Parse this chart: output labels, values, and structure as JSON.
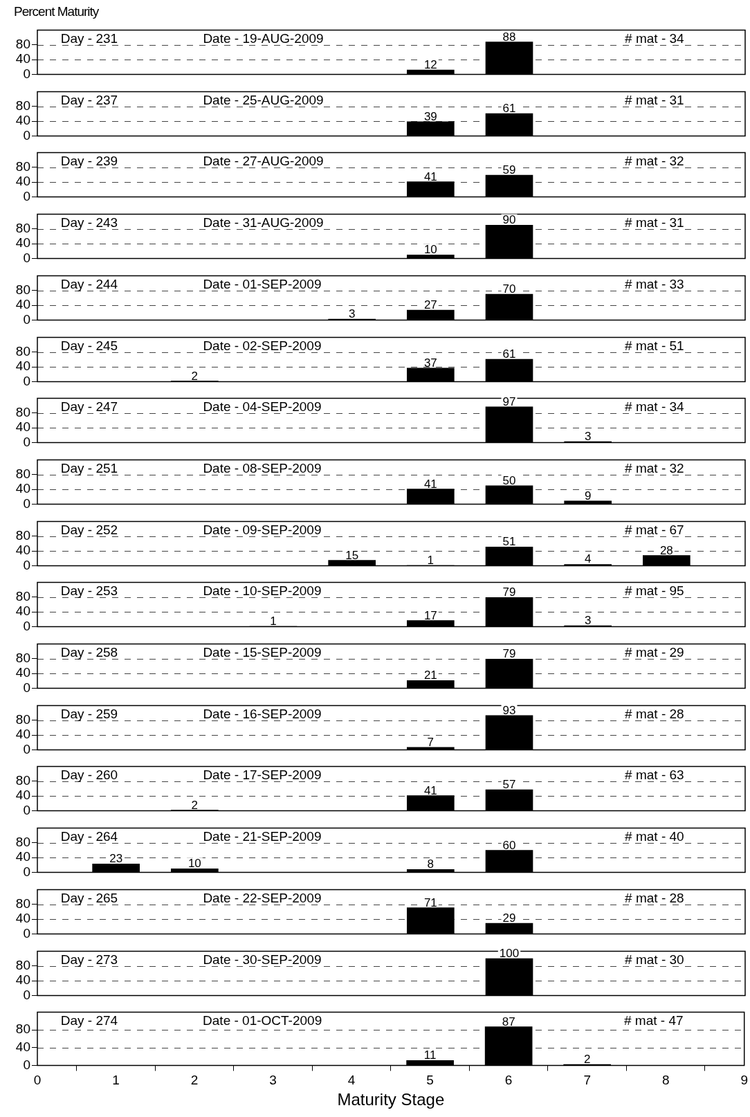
{
  "chart_data": [
    {
      "type": "bar",
      "ylabel": "Percent Maturity",
      "x": [
        5,
        6
      ],
      "values": [
        12,
        88
      ],
      "color": "#000000",
      "xlim": [
        0,
        9
      ],
      "xticks": [
        0,
        1,
        2,
        3,
        4,
        5,
        6,
        7,
        8,
        9
      ],
      "ylim": [
        0,
        120
      ],
      "yticks": [
        0,
        40,
        80
      ],
      "grid": "y",
      "tick_labels": "y",
      "data_labels": true,
      "annotations": [
        "Day - 231",
        "Date - 19-AUG-2009",
        "# mat - 34"
      ]
    },
    {
      "type": "bar",
      "x": [
        5,
        6
      ],
      "values": [
        39,
        61
      ],
      "color": "#000000",
      "xlim": [
        0,
        9
      ],
      "xticks": [
        0,
        1,
        2,
        3,
        4,
        5,
        6,
        7,
        8,
        9
      ],
      "ylim": [
        0,
        120
      ],
      "yticks": [
        0,
        40,
        80
      ],
      "grid": "y",
      "tick_labels": "y",
      "data_labels": true,
      "annotations": [
        "Day - 237",
        "Date - 25-AUG-2009",
        "# mat - 31"
      ]
    },
    {
      "type": "bar",
      "x": [
        5,
        6
      ],
      "values": [
        41,
        59
      ],
      "color": "#000000",
      "xlim": [
        0,
        9
      ],
      "xticks": [
        0,
        1,
        2,
        3,
        4,
        5,
        6,
        7,
        8,
        9
      ],
      "ylim": [
        0,
        120
      ],
      "yticks": [
        0,
        40,
        80
      ],
      "grid": "y",
      "tick_labels": "y",
      "data_labels": true,
      "annotations": [
        "Day - 239",
        "Date - 27-AUG-2009",
        "# mat - 32"
      ]
    },
    {
      "type": "bar",
      "x": [
        5,
        6
      ],
      "values": [
        10,
        90
      ],
      "color": "#000000",
      "xlim": [
        0,
        9
      ],
      "xticks": [
        0,
        1,
        2,
        3,
        4,
        5,
        6,
        7,
        8,
        9
      ],
      "ylim": [
        0,
        120
      ],
      "yticks": [
        0,
        40,
        80
      ],
      "grid": "y",
      "tick_labels": "y",
      "data_labels": true,
      "annotations": [
        "Day - 243",
        "Date - 31-AUG-2009",
        "# mat - 31"
      ]
    },
    {
      "type": "bar",
      "x": [
        4,
        5,
        6
      ],
      "values": [
        3,
        27,
        70
      ],
      "color": "#000000",
      "xlim": [
        0,
        9
      ],
      "xticks": [
        0,
        1,
        2,
        3,
        4,
        5,
        6,
        7,
        8,
        9
      ],
      "ylim": [
        0,
        120
      ],
      "yticks": [
        0,
        40,
        80
      ],
      "grid": "y",
      "tick_labels": "y",
      "data_labels": true,
      "annotations": [
        "Day - 244",
        "Date - 01-SEP-2009",
        "# mat - 33"
      ]
    },
    {
      "type": "bar",
      "x": [
        2,
        5,
        6
      ],
      "values": [
        2,
        37,
        61
      ],
      "color": "#000000",
      "xlim": [
        0,
        9
      ],
      "xticks": [
        0,
        1,
        2,
        3,
        4,
        5,
        6,
        7,
        8,
        9
      ],
      "ylim": [
        0,
        120
      ],
      "yticks": [
        0,
        40,
        80
      ],
      "grid": "y",
      "tick_labels": "y",
      "data_labels": true,
      "annotations": [
        "Day - 245",
        "Date - 02-SEP-2009",
        "# mat - 51"
      ]
    },
    {
      "type": "bar",
      "x": [
        6,
        7
      ],
      "values": [
        97,
        3
      ],
      "color": "#000000",
      "xlim": [
        0,
        9
      ],
      "xticks": [
        0,
        1,
        2,
        3,
        4,
        5,
        6,
        7,
        8,
        9
      ],
      "ylim": [
        0,
        120
      ],
      "yticks": [
        0,
        40,
        80
      ],
      "grid": "y",
      "tick_labels": "y",
      "data_labels": true,
      "annotations": [
        "Day - 247",
        "Date - 04-SEP-2009",
        "# mat - 34"
      ]
    },
    {
      "type": "bar",
      "x": [
        5,
        6,
        7
      ],
      "values": [
        41,
        50,
        9
      ],
      "color": "#000000",
      "xlim": [
        0,
        9
      ],
      "xticks": [
        0,
        1,
        2,
        3,
        4,
        5,
        6,
        7,
        8,
        9
      ],
      "ylim": [
        0,
        120
      ],
      "yticks": [
        0,
        40,
        80
      ],
      "grid": "y",
      "tick_labels": "y",
      "data_labels": true,
      "annotations": [
        "Day - 251",
        "Date - 08-SEP-2009",
        "# mat - 32"
      ]
    },
    {
      "type": "bar",
      "x": [
        4,
        5,
        6,
        7,
        8
      ],
      "values": [
        15,
        1,
        51,
        4,
        28
      ],
      "color": "#000000",
      "xlim": [
        0,
        9
      ],
      "xticks": [
        0,
        1,
        2,
        3,
        4,
        5,
        6,
        7,
        8,
        9
      ],
      "ylim": [
        0,
        120
      ],
      "yticks": [
        0,
        40,
        80
      ],
      "grid": "y",
      "tick_labels": "y",
      "data_labels": true,
      "annotations": [
        "Day - 252",
        "Date - 09-SEP-2009",
        "# mat - 67"
      ]
    },
    {
      "type": "bar",
      "x": [
        3,
        5,
        6,
        7
      ],
      "values": [
        1,
        17,
        79,
        3
      ],
      "color": "#000000",
      "xlim": [
        0,
        9
      ],
      "xticks": [
        0,
        1,
        2,
        3,
        4,
        5,
        6,
        7,
        8,
        9
      ],
      "ylim": [
        0,
        120
      ],
      "yticks": [
        0,
        40,
        80
      ],
      "grid": "y",
      "tick_labels": "y",
      "data_labels": true,
      "annotations": [
        "Day - 253",
        "Date - 10-SEP-2009",
        "# mat - 95"
      ]
    },
    {
      "type": "bar",
      "x": [
        5,
        6
      ],
      "values": [
        21,
        79
      ],
      "color": "#000000",
      "xlim": [
        0,
        9
      ],
      "xticks": [
        0,
        1,
        2,
        3,
        4,
        5,
        6,
        7,
        8,
        9
      ],
      "ylim": [
        0,
        120
      ],
      "yticks": [
        0,
        40,
        80
      ],
      "grid": "y",
      "tick_labels": "y",
      "data_labels": true,
      "annotations": [
        "Day - 258",
        "Date - 15-SEP-2009",
        "# mat - 29"
      ]
    },
    {
      "type": "bar",
      "x": [
        5,
        6
      ],
      "values": [
        7,
        93
      ],
      "color": "#000000",
      "xlim": [
        0,
        9
      ],
      "xticks": [
        0,
        1,
        2,
        3,
        4,
        5,
        6,
        7,
        8,
        9
      ],
      "ylim": [
        0,
        120
      ],
      "yticks": [
        0,
        40,
        80
      ],
      "grid": "y",
      "tick_labels": "y",
      "data_labels": true,
      "annotations": [
        "Day - 259",
        "Date - 16-SEP-2009",
        "# mat - 28"
      ]
    },
    {
      "type": "bar",
      "x": [
        2,
        5,
        6
      ],
      "values": [
        2,
        41,
        57
      ],
      "color": "#000000",
      "xlim": [
        0,
        9
      ],
      "xticks": [
        0,
        1,
        2,
        3,
        4,
        5,
        6,
        7,
        8,
        9
      ],
      "ylim": [
        0,
        120
      ],
      "yticks": [
        0,
        40,
        80
      ],
      "grid": "y",
      "tick_labels": "y",
      "data_labels": true,
      "annotations": [
        "Day - 260",
        "Date - 17-SEP-2009",
        "# mat - 63"
      ]
    },
    {
      "type": "bar",
      "x": [
        1,
        2,
        5,
        6
      ],
      "values": [
        23,
        10,
        8,
        60
      ],
      "color": "#000000",
      "xlim": [
        0,
        9
      ],
      "xticks": [
        0,
        1,
        2,
        3,
        4,
        5,
        6,
        7,
        8,
        9
      ],
      "ylim": [
        0,
        120
      ],
      "yticks": [
        0,
        40,
        80
      ],
      "grid": "y",
      "tick_labels": "y",
      "data_labels": true,
      "annotations": [
        "Day - 264",
        "Date - 21-SEP-2009",
        "# mat - 40"
      ]
    },
    {
      "type": "bar",
      "x": [
        5,
        6
      ],
      "values": [
        71,
        29
      ],
      "color": "#000000",
      "xlim": [
        0,
        9
      ],
      "xticks": [
        0,
        1,
        2,
        3,
        4,
        5,
        6,
        7,
        8,
        9
      ],
      "ylim": [
        0,
        120
      ],
      "yticks": [
        0,
        40,
        80
      ],
      "grid": "y",
      "tick_labels": "y",
      "data_labels": true,
      "annotations": [
        "Day - 265",
        "Date - 22-SEP-2009",
        "# mat - 28"
      ]
    },
    {
      "type": "bar",
      "x": [
        6
      ],
      "values": [
        100
      ],
      "color": "#000000",
      "xlim": [
        0,
        9
      ],
      "xticks": [
        0,
        1,
        2,
        3,
        4,
        5,
        6,
        7,
        8,
        9
      ],
      "ylim": [
        0,
        120
      ],
      "yticks": [
        0,
        40,
        80
      ],
      "grid": "y",
      "tick_labels": "y",
      "data_labels": true,
      "annotations": [
        "Day - 273",
        "Date - 30-SEP-2009",
        "# mat - 30"
      ]
    },
    {
      "type": "bar",
      "xlabel": "Maturity Stage",
      "x": [
        5,
        6,
        7
      ],
      "values": [
        11,
        87,
        2
      ],
      "color": "#000000",
      "xlim": [
        0,
        9
      ],
      "xticks": [
        0,
        1,
        2,
        3,
        4,
        5,
        6,
        7,
        8,
        9
      ],
      "ylim": [
        0,
        120
      ],
      "yticks": [
        0,
        40,
        80
      ],
      "grid": "y",
      "data_labels": true,
      "annotations": [
        "Day - 274",
        "Date - 01-OCT-2009",
        "# mat - 47"
      ]
    }
  ]
}
